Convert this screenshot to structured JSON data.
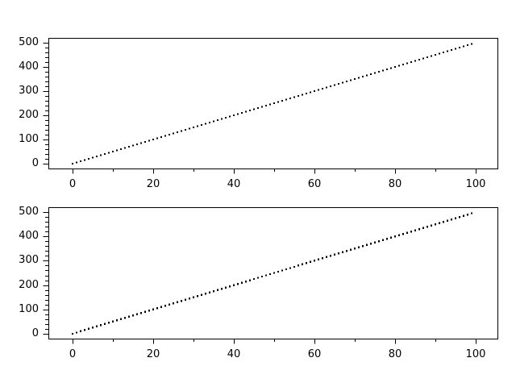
{
  "figure": {
    "background_color": "#ffffff",
    "frame_color": "#000000",
    "marker_color": "#000000",
    "tick_color": "#000000",
    "label_color": "#000000"
  },
  "chart_data": [
    {
      "type": "scatter",
      "subplot": "top",
      "marker": "small-black-square-dot",
      "title": "",
      "xlabel": "",
      "ylabel": "",
      "grid": false,
      "legend": null,
      "xlim": [
        -6,
        105.4
      ],
      "ylim": [
        -20,
        520
      ],
      "xticks": {
        "major": [
          0,
          20,
          40,
          60,
          80,
          100
        ],
        "minor": [
          10,
          30,
          50,
          70,
          90
        ]
      },
      "yticks": {
        "major": [
          0,
          100,
          200,
          300,
          400,
          500
        ],
        "minor_step": 20,
        "minor_range": [
          20,
          500
        ]
      },
      "xtick_labels": [
        "0",
        "20",
        "40",
        "60",
        "80",
        "100"
      ],
      "ytick_labels": [
        "0",
        "100",
        "200",
        "300",
        "400",
        "500"
      ],
      "x": [
        0,
        1,
        2,
        3,
        4,
        5,
        6,
        7,
        8,
        9,
        10,
        11,
        12,
        13,
        14,
        15,
        16,
        17,
        18,
        19,
        20,
        21,
        22,
        23,
        24,
        25,
        26,
        27,
        28,
        29,
        30,
        31,
        32,
        33,
        34,
        35,
        36,
        37,
        38,
        39,
        40,
        41,
        42,
        43,
        44,
        45,
        46,
        47,
        48,
        49,
        50,
        51,
        52,
        53,
        54,
        55,
        56,
        57,
        58,
        59,
        60,
        61,
        62,
        63,
        64,
        65,
        66,
        67,
        68,
        69,
        70,
        71,
        72,
        73,
        74,
        75,
        76,
        77,
        78,
        79,
        80,
        81,
        82,
        83,
        84,
        85,
        86,
        87,
        88,
        89,
        90,
        91,
        92,
        93,
        94,
        95,
        96,
        97,
        98,
        99
      ],
      "y": [
        0,
        5,
        10,
        15,
        20,
        25,
        30,
        35,
        40,
        45,
        50,
        55,
        60,
        65,
        70,
        75,
        80,
        85,
        90,
        95,
        100,
        105,
        110,
        115,
        120,
        125,
        130,
        135,
        140,
        145,
        150,
        155,
        160,
        165,
        170,
        175,
        180,
        185,
        190,
        195,
        200,
        205,
        210,
        215,
        220,
        225,
        230,
        235,
        240,
        245,
        250,
        255,
        260,
        265,
        270,
        275,
        280,
        285,
        290,
        295,
        300,
        305,
        310,
        315,
        320,
        325,
        330,
        335,
        340,
        345,
        350,
        355,
        360,
        365,
        370,
        375,
        380,
        385,
        390,
        395,
        400,
        405,
        410,
        415,
        420,
        425,
        430,
        435,
        440,
        445,
        450,
        455,
        460,
        465,
        470,
        475,
        480,
        485,
        490,
        495
      ]
    },
    {
      "type": "scatter",
      "subplot": "bottom",
      "marker": "small-black-square-dot",
      "title": "",
      "xlabel": "",
      "ylabel": "",
      "grid": false,
      "legend": null,
      "xlim": [
        -6,
        105.4
      ],
      "ylim": [
        -20,
        520
      ],
      "xticks": {
        "major": [
          0,
          20,
          40,
          60,
          80,
          100
        ],
        "minor": [
          10,
          30,
          50,
          70,
          90
        ]
      },
      "yticks": {
        "major": [
          0,
          100,
          200,
          300,
          400,
          500
        ],
        "minor_step": 20,
        "minor_range": [
          20,
          500
        ]
      },
      "xtick_labels": [
        "0",
        "20",
        "40",
        "60",
        "80",
        "100"
      ],
      "ytick_labels": [
        "0",
        "100",
        "200",
        "300",
        "400",
        "500"
      ],
      "x": [
        0,
        1,
        2,
        3,
        4,
        5,
        6,
        7,
        8,
        9,
        10,
        11,
        12,
        13,
        14,
        15,
        16,
        17,
        18,
        19,
        20,
        21,
        22,
        23,
        24,
        25,
        26,
        27,
        28,
        29,
        30,
        31,
        32,
        33,
        34,
        35,
        36,
        37,
        38,
        39,
        40,
        41,
        42,
        43,
        44,
        45,
        46,
        47,
        48,
        49,
        50,
        51,
        52,
        53,
        54,
        55,
        56,
        57,
        58,
        59,
        60,
        61,
        62,
        63,
        64,
        65,
        66,
        67,
        68,
        69,
        70,
        71,
        72,
        73,
        74,
        75,
        76,
        77,
        78,
        79,
        80,
        81,
        82,
        83,
        84,
        85,
        86,
        87,
        88,
        89,
        90,
        91,
        92,
        93,
        94,
        95,
        96,
        97,
        98,
        99
      ],
      "y": [
        0,
        5,
        10,
        15,
        20,
        25,
        30,
        35,
        40,
        45,
        50,
        55,
        60,
        65,
        70,
        75,
        80,
        85,
        90,
        95,
        100,
        105,
        110,
        115,
        120,
        125,
        130,
        135,
        140,
        145,
        150,
        155,
        160,
        165,
        170,
        175,
        180,
        185,
        190,
        195,
        200,
        205,
        210,
        215,
        220,
        225,
        230,
        235,
        240,
        245,
        250,
        255,
        260,
        265,
        270,
        275,
        280,
        285,
        290,
        295,
        300,
        305,
        310,
        315,
        320,
        325,
        330,
        335,
        340,
        345,
        350,
        355,
        360,
        365,
        370,
        375,
        380,
        385,
        390,
        395,
        400,
        405,
        410,
        415,
        420,
        425,
        430,
        435,
        440,
        445,
        450,
        455,
        460,
        465,
        470,
        475,
        480,
        485,
        490,
        495
      ]
    }
  ]
}
